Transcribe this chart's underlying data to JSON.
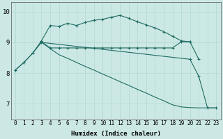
{
  "xlabel": "Humidex (Indice chaleur)",
  "bg_color": "#cce8e5",
  "grid_color": "#b0d8d4",
  "line_color": "#1e6b62",
  "xlim": [
    -0.5,
    23.5
  ],
  "ylim": [
    6.5,
    10.3
  ],
  "yticks": [
    7,
    8,
    9,
    10
  ],
  "xticks": [
    0,
    1,
    2,
    3,
    4,
    5,
    6,
    7,
    8,
    9,
    10,
    11,
    12,
    13,
    14,
    15,
    16,
    17,
    18,
    19,
    20,
    21,
    22,
    23
  ],
  "lines": [
    {
      "x": [
        0,
        1,
        2,
        3,
        4,
        5,
        6,
        7,
        8,
        9,
        10,
        11,
        12,
        13,
        14,
        15,
        16,
        17,
        18,
        19,
        20,
        21
      ],
      "y": [
        8.1,
        8.35,
        8.65,
        9.05,
        9.55,
        9.52,
        9.62,
        9.55,
        9.65,
        9.72,
        9.75,
        9.82,
        9.88,
        9.78,
        9.67,
        9.57,
        9.47,
        9.35,
        9.2,
        9.05,
        9.02,
        8.45
      ],
      "marker": true
    },
    {
      "x": [
        3,
        4,
        5,
        6,
        7,
        8,
        9,
        10,
        11,
        12,
        13,
        14,
        15,
        16,
        17,
        18,
        19,
        20
      ],
      "y": [
        9.02,
        8.82,
        8.82,
        8.82,
        8.82,
        8.82,
        8.82,
        8.82,
        8.82,
        8.82,
        8.82,
        8.82,
        8.82,
        8.82,
        8.82,
        8.82,
        9.02,
        9.02
      ],
      "marker": true
    },
    {
      "x": [
        3,
        4,
        5,
        6,
        7,
        8,
        9,
        10,
        11,
        12,
        13,
        14,
        15,
        16,
        17,
        18,
        19,
        20,
        21,
        22,
        23
      ],
      "y": [
        9.0,
        8.8,
        8.6,
        8.48,
        8.35,
        8.22,
        8.1,
        7.97,
        7.85,
        7.72,
        7.6,
        7.47,
        7.35,
        7.22,
        7.1,
        6.97,
        6.9,
        6.88,
        6.87,
        6.87,
        6.87
      ],
      "marker": false
    },
    {
      "x": [
        0,
        1,
        2,
        3,
        20,
        21,
        22,
        23
      ],
      "y": [
        8.1,
        8.35,
        8.65,
        9.0,
        8.45,
        7.9,
        6.87,
        6.87
      ],
      "marker": true
    }
  ]
}
